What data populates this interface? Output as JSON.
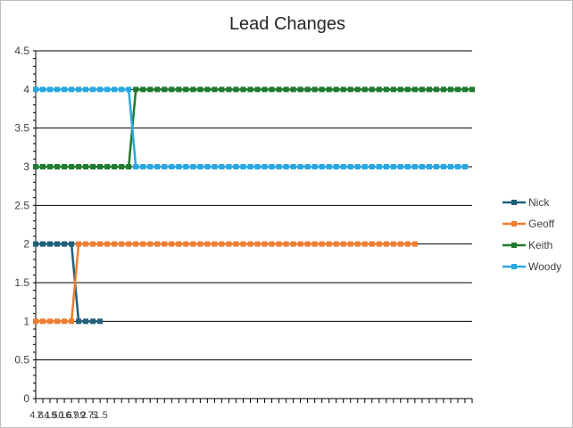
{
  "chart_data": {
    "type": "line",
    "title": "Lead Changes",
    "xlabel": "",
    "ylabel": "",
    "ylim": [
      0,
      4.5
    ],
    "ytick_step": 0.5,
    "grid": true,
    "legend_position": "right",
    "x_tick_labels": [
      "4.8",
      "7.1",
      "4.5",
      "9.1",
      "0.6",
      "6.9",
      "7.2",
      "9.7",
      "5",
      "1.5"
    ],
    "series": [
      {
        "name": "Nick",
        "color": "#1f5f7a",
        "values": [
          2,
          2,
          2,
          2,
          2,
          2,
          1,
          1,
          1,
          1
        ]
      },
      {
        "name": "Geoff",
        "color": "#ed7d31",
        "values": [
          1,
          1,
          1,
          1,
          1,
          1,
          2,
          2,
          2,
          2,
          2,
          2,
          2,
          2,
          2,
          2,
          2,
          2,
          2,
          2,
          2,
          2,
          2,
          2,
          2,
          2,
          2,
          2,
          2,
          2,
          2,
          2,
          2,
          2,
          2,
          2,
          2,
          2,
          2,
          2,
          2,
          2,
          2,
          2,
          2,
          2,
          2,
          2,
          2,
          2,
          2,
          2,
          2,
          2
        ]
      },
      {
        "name": "Keith",
        "color": "#1e7a2e",
        "values": [
          3,
          3,
          3,
          3,
          3,
          3,
          3,
          3,
          3,
          3,
          3,
          3,
          3,
          3,
          4,
          4,
          4,
          4,
          4,
          4,
          4,
          4,
          4,
          4,
          4,
          4,
          4,
          4,
          4,
          4,
          4,
          4,
          4,
          4,
          4,
          4,
          4,
          4,
          4,
          4,
          4,
          4,
          4,
          4,
          4,
          4,
          4,
          4,
          4,
          4,
          4,
          4,
          4,
          4,
          4,
          4,
          4,
          4,
          4,
          4,
          4,
          4
        ]
      },
      {
        "name": "Woody",
        "color": "#2aa7df",
        "values": [
          4,
          4,
          4,
          4,
          4,
          4,
          4,
          4,
          4,
          4,
          4,
          4,
          4,
          4,
          3,
          3,
          3,
          3,
          3,
          3,
          3,
          3,
          3,
          3,
          3,
          3,
          3,
          3,
          3,
          3,
          3,
          3,
          3,
          3,
          3,
          3,
          3,
          3,
          3,
          3,
          3,
          3,
          3,
          3,
          3,
          3,
          3,
          3,
          3,
          3,
          3,
          3,
          3,
          3,
          3,
          3,
          3,
          3,
          3,
          3,
          3
        ]
      }
    ]
  }
}
